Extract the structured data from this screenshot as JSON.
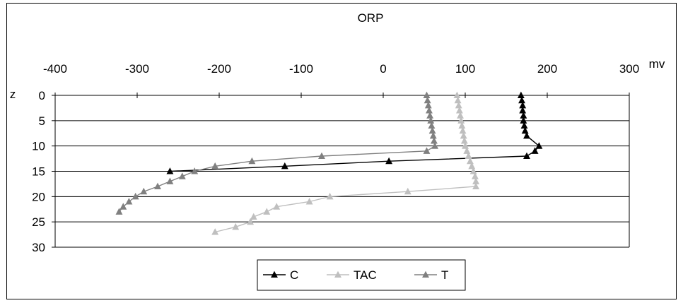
{
  "chart_data": {
    "type": "line",
    "title": "ORP",
    "xlabel": "mv",
    "ylabel": "z",
    "xlim": [
      -400,
      300
    ],
    "ylim": [
      0,
      30
    ],
    "x_ticks": [
      -400,
      -300,
      -200,
      -100,
      0,
      100,
      200,
      300
    ],
    "y_ticks": [
      0,
      5,
      10,
      15,
      20,
      25,
      30
    ],
    "y_inverted": true,
    "x_axis_position": "top",
    "grid": "horizontal",
    "legend_position": "bottom",
    "series": [
      {
        "name": "C",
        "color": "#000000",
        "points": [
          [
            168,
            0
          ],
          [
            169,
            1
          ],
          [
            170,
            2
          ],
          [
            170,
            3
          ],
          [
            171,
            4
          ],
          [
            171,
            5
          ],
          [
            172,
            6
          ],
          [
            173,
            7
          ],
          [
            175,
            8
          ],
          [
            190,
            10
          ],
          [
            185,
            11
          ],
          [
            175,
            12
          ],
          [
            7,
            13
          ],
          [
            -120,
            14
          ],
          [
            -260,
            15
          ]
        ]
      },
      {
        "name": "TAC",
        "color": "#bfbfbf",
        "points": [
          [
            90,
            0
          ],
          [
            91,
            1
          ],
          [
            92,
            2
          ],
          [
            93,
            3
          ],
          [
            94,
            4
          ],
          [
            95,
            5
          ],
          [
            96,
            6
          ],
          [
            97,
            7
          ],
          [
            98,
            8
          ],
          [
            99,
            9
          ],
          [
            100,
            10
          ],
          [
            102,
            11
          ],
          [
            104,
            12
          ],
          [
            106,
            13
          ],
          [
            108,
            14
          ],
          [
            110,
            15
          ],
          [
            112,
            16
          ],
          [
            113,
            17
          ],
          [
            113,
            18
          ],
          [
            30,
            19
          ],
          [
            -65,
            20
          ],
          [
            -90,
            21
          ],
          [
            -130,
            22
          ],
          [
            -142,
            23
          ],
          [
            -158,
            24
          ],
          [
            -162,
            25
          ],
          [
            -180,
            26
          ],
          [
            -205,
            27
          ]
        ]
      },
      {
        "name": "T",
        "color": "#808080",
        "points": [
          [
            53,
            0
          ],
          [
            54,
            1
          ],
          [
            55,
            2
          ],
          [
            56,
            3
          ],
          [
            57,
            4
          ],
          [
            58,
            5
          ],
          [
            59,
            6
          ],
          [
            60,
            7
          ],
          [
            61,
            8
          ],
          [
            62,
            9
          ],
          [
            63,
            10
          ],
          [
            53,
            11
          ],
          [
            -75,
            12
          ],
          [
            -160,
            13
          ],
          [
            -205,
            14
          ],
          [
            -230,
            15
          ],
          [
            -245,
            16
          ],
          [
            -260,
            17
          ],
          [
            -275,
            18
          ],
          [
            -292,
            19
          ],
          [
            -302,
            20
          ],
          [
            -310,
            21
          ],
          [
            -317,
            22
          ],
          [
            -322,
            23
          ]
        ]
      }
    ]
  }
}
